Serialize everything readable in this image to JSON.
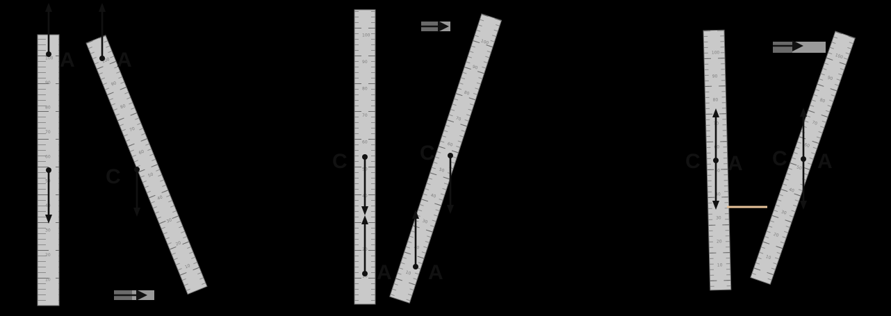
{
  "labels": {
    "point_a": "A",
    "point_c": "C"
  },
  "ruler_numbers": [
    "10",
    "20",
    "30",
    "40",
    "50",
    "60",
    "70",
    "80",
    "90",
    "100"
  ],
  "colors": {
    "ruler_fill": "#c9c9c9",
    "ruler_edge": "#6e6e6e",
    "arrow": "#111111",
    "accent_line": "#e7c39a"
  },
  "icons": [
    "force-arrow",
    "push-arrow",
    "point-dot"
  ]
}
